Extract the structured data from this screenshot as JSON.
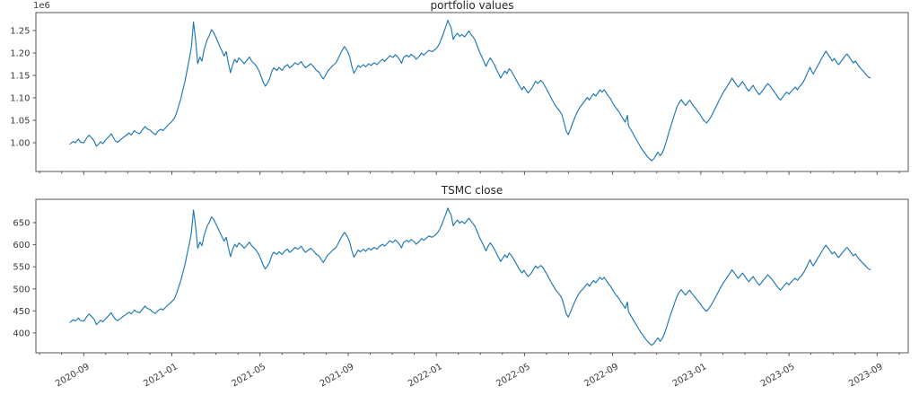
{
  "figure": {
    "background": "#ffffff",
    "line_color": "#1f77b4",
    "spine_color": "#565656",
    "text_color": "#3a3a3a"
  },
  "chart_data": [
    {
      "type": "line",
      "name": "portfolio-values",
      "title": "portfolio values",
      "offset_text": "1e6",
      "unit": "1e6",
      "legend": "none",
      "grid": false,
      "xlim": [
        -45.3,
        781
      ],
      "ylim": [
        0.936,
        1.29
      ],
      "y_ticks": {
        "values": [
          1.0,
          1.05,
          1.1,
          1.15,
          1.2,
          1.25
        ],
        "labels": [
          "1.00",
          "1.05",
          "1.10",
          "1.15",
          "1.20",
          "1.25"
        ]
      },
      "x_ticks": {
        "t": [
          0,
          83.5,
          167,
          250.5,
          334,
          417.5,
          501,
          584.5,
          668,
          751.5
        ],
        "minor_step": 20.875
      },
      "x": [
        -13,
        -10,
        -8,
        -5,
        -3,
        0,
        3,
        5,
        8,
        10,
        12,
        14,
        16,
        18,
        21,
        24,
        26,
        28,
        30,
        32,
        35,
        37,
        40,
        43,
        45,
        48,
        50,
        53,
        56,
        58,
        60,
        63,
        65,
        68,
        70,
        73,
        75,
        78,
        80,
        83,
        86,
        88,
        90,
        92,
        94,
        96,
        98,
        100,
        102,
        104,
        105,
        106,
        108,
        110,
        112,
        114,
        117,
        119,
        121,
        123,
        125,
        127,
        129,
        131,
        133,
        135,
        137,
        139,
        141,
        143,
        145,
        147,
        150,
        152,
        155,
        157,
        159,
        162,
        164,
        166,
        168,
        170,
        172,
        174,
        176,
        178,
        180,
        183,
        185,
        188,
        190,
        193,
        195,
        198,
        200,
        203,
        206,
        208,
        210,
        213,
        215,
        218,
        220,
        223,
        225,
        227,
        229,
        231,
        234,
        236,
        239,
        241,
        243,
        245,
        247,
        248,
        250,
        252,
        254,
        256,
        258,
        260,
        262,
        265,
        267,
        270,
        272,
        275,
        278,
        280,
        283,
        285,
        288,
        290,
        293,
        295,
        297,
        299,
        301,
        303,
        306,
        308,
        310,
        313,
        315,
        318,
        320,
        322,
        325,
        327,
        330,
        333,
        335,
        337,
        339,
        341,
        343,
        345,
        346,
        348,
        350,
        352,
        354,
        356,
        358,
        361,
        363,
        365,
        367,
        369,
        371,
        373,
        375,
        377,
        379,
        381,
        383,
        385,
        387,
        389,
        391,
        393,
        395,
        397,
        399,
        401,
        403,
        405,
        407,
        409,
        411,
        413,
        415,
        417,
        419,
        421,
        424,
        426,
        428,
        430,
        433,
        435,
        437,
        439,
        441,
        443,
        445,
        447,
        449,
        451,
        453,
        455,
        457,
        459,
        461,
        463,
        465,
        467,
        469,
        471,
        473,
        475,
        477,
        479,
        481,
        483,
        485,
        487,
        489,
        491,
        493,
        495,
        497,
        499,
        501,
        503,
        505,
        507,
        509,
        511,
        513,
        515,
        516,
        518,
        520,
        522,
        524,
        526,
        528,
        530,
        532,
        534,
        536,
        538,
        540,
        542,
        544,
        546,
        548,
        550,
        552,
        554,
        556,
        558,
        560,
        562,
        564,
        566,
        568,
        570,
        572,
        574,
        576,
        578,
        580,
        582,
        584,
        586,
        588,
        590,
        592,
        594,
        596,
        598,
        600,
        602,
        604,
        606,
        608,
        610,
        612,
        614,
        616,
        618,
        620,
        622,
        624,
        626,
        628,
        630,
        632,
        634,
        636,
        638,
        640,
        642,
        644,
        646,
        648,
        650,
        652,
        654,
        656,
        658,
        660,
        662,
        664,
        666,
        668,
        670,
        672,
        674,
        676,
        678,
        680,
        682,
        684,
        686,
        688,
        689,
        691,
        693,
        695,
        697,
        699,
        701,
        703,
        705,
        707,
        709,
        711,
        713,
        715,
        717,
        719,
        721,
        723,
        725,
        727,
        729,
        731,
        733,
        735,
        737,
        739,
        741,
        743,
        745
      ],
      "values": [
        0.997,
        1.003,
        1.0,
        1.008,
        1.001,
        1.0,
        1.011,
        1.017,
        1.01,
        1.003,
        0.992,
        0.997,
        1.002,
        0.998,
        1.007,
        1.014,
        1.02,
        1.012,
        1.004,
        1.001,
        1.007,
        1.011,
        1.016,
        1.022,
        1.017,
        1.027,
        1.023,
        1.02,
        1.03,
        1.036,
        1.031,
        1.028,
        1.023,
        1.018,
        1.025,
        1.03,
        1.027,
        1.034,
        1.04,
        1.046,
        1.055,
        1.067,
        1.083,
        1.098,
        1.119,
        1.138,
        1.163,
        1.186,
        1.214,
        1.269,
        1.249,
        1.228,
        1.176,
        1.191,
        1.182,
        1.207,
        1.23,
        1.239,
        1.252,
        1.246,
        1.236,
        1.225,
        1.214,
        1.204,
        1.193,
        1.203,
        1.178,
        1.156,
        1.173,
        1.186,
        1.179,
        1.189,
        1.182,
        1.176,
        1.185,
        1.191,
        1.182,
        1.175,
        1.169,
        1.16,
        1.148,
        1.135,
        1.126,
        1.133,
        1.142,
        1.158,
        1.167,
        1.161,
        1.168,
        1.161,
        1.169,
        1.174,
        1.167,
        1.172,
        1.178,
        1.174,
        1.181,
        1.173,
        1.167,
        1.172,
        1.176,
        1.169,
        1.162,
        1.157,
        1.148,
        1.142,
        1.15,
        1.159,
        1.167,
        1.172,
        1.178,
        1.188,
        1.197,
        1.207,
        1.214,
        1.211,
        1.203,
        1.191,
        1.17,
        1.155,
        1.163,
        1.172,
        1.168,
        1.174,
        1.169,
        1.176,
        1.172,
        1.178,
        1.174,
        1.18,
        1.186,
        1.181,
        1.189,
        1.194,
        1.19,
        1.196,
        1.192,
        1.186,
        1.177,
        1.19,
        1.195,
        1.191,
        1.197,
        1.192,
        1.186,
        1.193,
        1.2,
        1.195,
        1.202,
        1.206,
        1.203,
        1.208,
        1.213,
        1.221,
        1.233,
        1.245,
        1.259,
        1.273,
        1.266,
        1.257,
        1.23,
        1.239,
        1.244,
        1.237,
        1.241,
        1.236,
        1.243,
        1.249,
        1.241,
        1.235,
        1.227,
        1.214,
        1.202,
        1.192,
        1.181,
        1.17,
        1.18,
        1.189,
        1.182,
        1.174,
        1.163,
        1.154,
        1.144,
        1.153,
        1.16,
        1.154,
        1.165,
        1.16,
        1.151,
        1.143,
        1.134,
        1.126,
        1.118,
        1.125,
        1.117,
        1.111,
        1.12,
        1.128,
        1.137,
        1.132,
        1.139,
        1.134,
        1.126,
        1.117,
        1.108,
        1.099,
        1.09,
        1.082,
        1.076,
        1.07,
        1.062,
        1.045,
        1.026,
        1.018,
        1.03,
        1.043,
        1.055,
        1.066,
        1.075,
        1.082,
        1.088,
        1.094,
        1.101,
        1.095,
        1.103,
        1.109,
        1.104,
        1.111,
        1.118,
        1.113,
        1.118,
        1.111,
        1.104,
        1.098,
        1.089,
        1.081,
        1.075,
        1.069,
        1.061,
        1.053,
        1.046,
        1.061,
        1.038,
        1.03,
        1.022,
        1.013,
        1.005,
        0.997,
        0.988,
        0.982,
        0.975,
        0.969,
        0.964,
        0.96,
        0.964,
        0.972,
        0.979,
        0.971,
        0.977,
        0.989,
        1.004,
        1.021,
        1.036,
        1.051,
        1.066,
        1.08,
        1.089,
        1.096,
        1.089,
        1.083,
        1.089,
        1.095,
        1.087,
        1.081,
        1.075,
        1.068,
        1.062,
        1.054,
        1.048,
        1.044,
        1.05,
        1.057,
        1.066,
        1.076,
        1.085,
        1.095,
        1.104,
        1.113,
        1.12,
        1.128,
        1.135,
        1.144,
        1.137,
        1.13,
        1.124,
        1.13,
        1.136,
        1.129,
        1.121,
        1.115,
        1.121,
        1.128,
        1.12,
        1.113,
        1.107,
        1.113,
        1.119,
        1.126,
        1.132,
        1.127,
        1.12,
        1.114,
        1.107,
        1.1,
        1.095,
        1.101,
        1.108,
        1.113,
        1.108,
        1.114,
        1.119,
        1.124,
        1.118,
        1.125,
        1.13,
        1.137,
        1.147,
        1.158,
        1.168,
        1.162,
        1.153,
        1.162,
        1.17,
        1.179,
        1.188,
        1.196,
        1.204,
        1.197,
        1.19,
        1.182,
        1.188,
        1.18,
        1.174,
        1.18,
        1.186,
        1.193,
        1.198,
        1.192,
        1.184,
        1.178,
        1.182,
        1.175,
        1.168,
        1.163,
        1.158,
        1.152,
        1.147,
        1.144
      ]
    },
    {
      "type": "line",
      "name": "tsmc-close",
      "title": "TSMC close",
      "legend": "none",
      "grid": false,
      "xlim": [
        -45.3,
        781
      ],
      "ylim": [
        355,
        703
      ],
      "y_ticks": {
        "values": [
          400,
          450,
          500,
          550,
          600,
          650
        ],
        "labels": [
          "400",
          "450",
          "500",
          "550",
          "600",
          "650"
        ]
      },
      "x_ticks": {
        "t": [
          0,
          83.5,
          167,
          250.5,
          334,
          417.5,
          501,
          584.5,
          668,
          751.5
        ],
        "minor_step": 20.875,
        "labels": [
          "2020-09",
          "2021-01",
          "2021-05",
          "2021-09",
          "2022-01",
          "2022-05",
          "2022-09",
          "2023-01",
          "2023-05",
          "2023-09"
        ]
      },
      "values": [
        424,
        430,
        427,
        434,
        428,
        427,
        437,
        443,
        436,
        430,
        419,
        424,
        429,
        425,
        433,
        440,
        446,
        438,
        431,
        428,
        433,
        437,
        442,
        447,
        443,
        452,
        448,
        446,
        455,
        461,
        456,
        453,
        448,
        444,
        450,
        455,
        452,
        459,
        464,
        470,
        478,
        490,
        505,
        519,
        538,
        556,
        580,
        601,
        628,
        679,
        660,
        641,
        592,
        606,
        598,
        621,
        643,
        651,
        663,
        658,
        648,
        638,
        628,
        618,
        608,
        617,
        594,
        573,
        589,
        601,
        595,
        604,
        598,
        592,
        600,
        606,
        598,
        591,
        585,
        577,
        566,
        553,
        545,
        552,
        560,
        575,
        583,
        578,
        584,
        578,
        585,
        590,
        583,
        588,
        594,
        590,
        597,
        589,
        583,
        588,
        592,
        585,
        579,
        574,
        566,
        560,
        568,
        576,
        583,
        588,
        594,
        603,
        612,
        621,
        628,
        625,
        617,
        606,
        586,
        572,
        580,
        588,
        584,
        590,
        585,
        592,
        588,
        594,
        590,
        596,
        601,
        597,
        604,
        609,
        605,
        611,
        607,
        601,
        593,
        605,
        610,
        606,
        612,
        607,
        601,
        608,
        614,
        610,
        616,
        620,
        617,
        622,
        627,
        634,
        645,
        657,
        670,
        683,
        676,
        668,
        643,
        651,
        656,
        649,
        653,
        648,
        655,
        660,
        653,
        647,
        640,
        628,
        616,
        607,
        597,
        586,
        596,
        604,
        598,
        590,
        580,
        571,
        562,
        570,
        577,
        571,
        581,
        576,
        568,
        560,
        551,
        543,
        536,
        542,
        534,
        528,
        536,
        544,
        552,
        547,
        553,
        548,
        540,
        532,
        523,
        514,
        506,
        498,
        492,
        486,
        478,
        462,
        444,
        436,
        447,
        459,
        470,
        480,
        489,
        495,
        500,
        506,
        512,
        506,
        513,
        519,
        514,
        520,
        526,
        521,
        526,
        519,
        512,
        506,
        498,
        490,
        484,
        478,
        470,
        463,
        456,
        470,
        448,
        440,
        432,
        424,
        416,
        408,
        400,
        394,
        387,
        381,
        376,
        372,
        376,
        383,
        389,
        381,
        387,
        398,
        412,
        428,
        442,
        456,
        470,
        483,
        492,
        498,
        492,
        486,
        492,
        497,
        490,
        484,
        478,
        472,
        466,
        459,
        453,
        449,
        455,
        462,
        470,
        479,
        488,
        497,
        506,
        514,
        521,
        528,
        535,
        543,
        537,
        530,
        524,
        530,
        536,
        529,
        522,
        516,
        522,
        528,
        521,
        514,
        508,
        514,
        520,
        526,
        532,
        527,
        521,
        515,
        508,
        502,
        497,
        503,
        509,
        514,
        509,
        515,
        520,
        524,
        519,
        525,
        530,
        537,
        546,
        556,
        566,
        560,
        552,
        560,
        568,
        576,
        584,
        592,
        599,
        593,
        586,
        579,
        584,
        577,
        571,
        577,
        583,
        589,
        594,
        588,
        581,
        575,
        579,
        572,
        566,
        561,
        556,
        551,
        546,
        543
      ]
    }
  ]
}
